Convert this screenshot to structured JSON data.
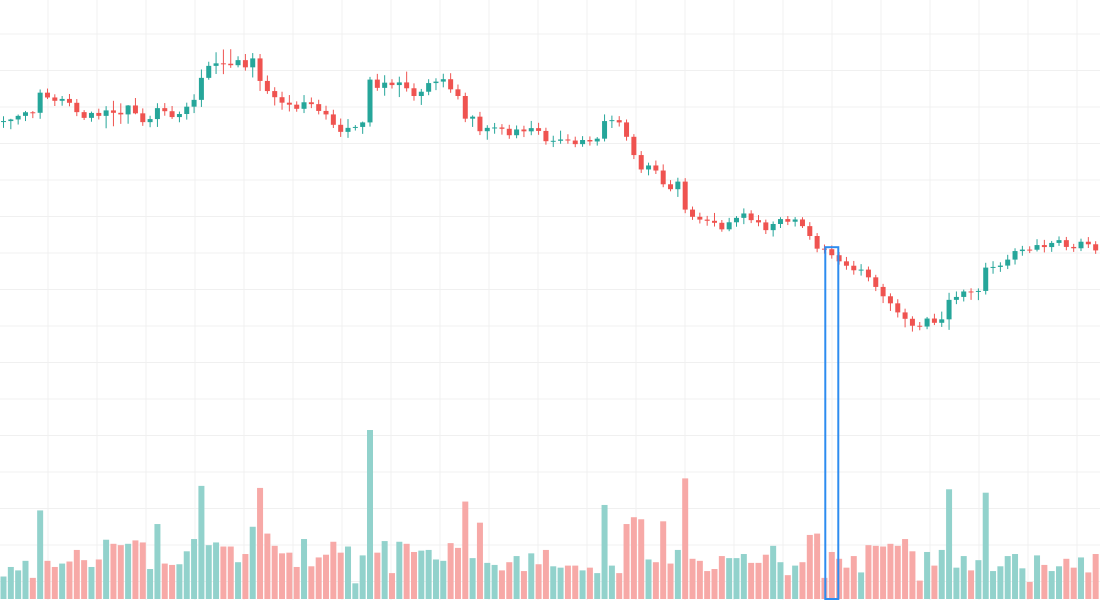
{
  "colors": {
    "background": "#ffffff",
    "grid": "#f0f0f0",
    "up": "#26a69a",
    "down": "#ef5350",
    "up_volume": "#92d2cc",
    "down_volume": "#f7a9a7",
    "highlight": "#2d8cf0"
  },
  "chart_data": {
    "type": "candlestick",
    "grid": true,
    "highlight_candle_index": 113,
    "series": [
      {
        "name": "price",
        "ohlc": [
          [
            109.17,
            109.53,
            108.66,
            109.17
          ],
          [
            109.17,
            109.34,
            108.56,
            109.29
          ],
          [
            109.29,
            109.66,
            108.91,
            109.56
          ],
          [
            109.56,
            109.93,
            109.17,
            109.83
          ],
          [
            109.83,
            109.92,
            109.39,
            109.79
          ],
          [
            109.79,
            111.54,
            109.34,
            111.3
          ],
          [
            111.3,
            111.61,
            110.82,
            110.94
          ],
          [
            110.94,
            111.18,
            110.3,
            110.69
          ],
          [
            110.69,
            111.05,
            110.32,
            110.83
          ],
          [
            110.83,
            111.2,
            110.28,
            110.54
          ],
          [
            110.54,
            110.82,
            109.54,
            109.84
          ],
          [
            109.84,
            109.99,
            109.25,
            109.41
          ],
          [
            109.41,
            109.88,
            109.12,
            109.78
          ],
          [
            109.78,
            110.1,
            109.29,
            109.56
          ],
          [
            109.56,
            110.29,
            108.63,
            109.97
          ],
          [
            109.97,
            110.69,
            108.78,
            109.79
          ],
          [
            109.79,
            110.5,
            108.96,
            109.67
          ],
          [
            109.67,
            110.37,
            108.97,
            110.34
          ],
          [
            110.34,
            110.9,
            109.68,
            109.75
          ],
          [
            109.75,
            110.12,
            108.81,
            109.09
          ],
          [
            109.09,
            109.57,
            108.71,
            109.32
          ],
          [
            109.32,
            110.51,
            108.73,
            110.14
          ],
          [
            110.14,
            110.52,
            109.57,
            109.91
          ],
          [
            109.91,
            110.3,
            109.33,
            109.47
          ],
          [
            109.47,
            109.88,
            109.08,
            109.7
          ],
          [
            109.7,
            110.55,
            109.28,
            110.25
          ],
          [
            110.25,
            111.18,
            109.77,
            110.76
          ],
          [
            110.76,
            113.04,
            110.23,
            112.41
          ],
          [
            112.41,
            113.62,
            112.27,
            113.31
          ],
          [
            113.31,
            114.33,
            112.7,
            113.5
          ],
          [
            113.5,
            114.54,
            112.69,
            113.47
          ],
          [
            113.47,
            114.56,
            113.16,
            113.36
          ],
          [
            113.36,
            114.03,
            113.2,
            113.74
          ],
          [
            113.74,
            114.2,
            112.95,
            113.2
          ],
          [
            113.2,
            114.27,
            112.44,
            113.87
          ],
          [
            113.87,
            114.2,
            111.43,
            112.18
          ],
          [
            112.18,
            112.59,
            111.21,
            111.42
          ],
          [
            111.42,
            111.71,
            110.34,
            110.96
          ],
          [
            110.96,
            111.37,
            110.02,
            110.55
          ],
          [
            110.55,
            111.12,
            109.89,
            110.4
          ],
          [
            110.4,
            110.65,
            109.87,
            110.09
          ],
          [
            110.09,
            111.12,
            109.77,
            110.58
          ],
          [
            110.58,
            110.94,
            110.14,
            110.44
          ],
          [
            110.44,
            110.77,
            109.67,
            109.93
          ],
          [
            109.93,
            110.32,
            109.28,
            109.67
          ],
          [
            109.67,
            110.02,
            108.65,
            108.89
          ],
          [
            108.89,
            109.36,
            107.98,
            108.36
          ],
          [
            108.36,
            109.32,
            107.91,
            108.66
          ],
          [
            108.66,
            108.87,
            108.46,
            108.73
          ],
          [
            108.73,
            109.13,
            108.21,
            109.07
          ],
          [
            109.07,
            112.48,
            108.75,
            112.28
          ],
          [
            112.28,
            112.71,
            111.44,
            111.66
          ],
          [
            111.66,
            112.61,
            111.07,
            112.05
          ],
          [
            112.05,
            112.31,
            111.61,
            111.87
          ],
          [
            111.87,
            112.5,
            110.97,
            112.07
          ],
          [
            112.07,
            112.88,
            111.38,
            111.63
          ],
          [
            111.63,
            112.0,
            110.7,
            111.05
          ],
          [
            111.05,
            111.58,
            110.38,
            111.37
          ],
          [
            111.37,
            112.31,
            111.11,
            112.02
          ],
          [
            112.02,
            112.38,
            111.49,
            112.13
          ],
          [
            112.13,
            112.72,
            111.7,
            112.31
          ],
          [
            112.31,
            112.76,
            111.29,
            111.55
          ],
          [
            111.55,
            111.91,
            110.79,
            111.05
          ],
          [
            111.05,
            111.3,
            109.09,
            109.35
          ],
          [
            109.35,
            109.6,
            108.73,
            109.5
          ],
          [
            109.5,
            109.86,
            108.12,
            108.41
          ],
          [
            108.41,
            108.86,
            107.77,
            108.66
          ],
          [
            108.66,
            109.03,
            108.22,
            108.69
          ],
          [
            108.69,
            108.94,
            108.15,
            108.59
          ],
          [
            108.59,
            108.89,
            107.84,
            108.11
          ],
          [
            108.11,
            108.84,
            107.88,
            108.54
          ],
          [
            108.54,
            108.82,
            107.97,
            108.4
          ],
          [
            108.4,
            109.18,
            108.11,
            108.64
          ],
          [
            108.64,
            109.04,
            108.14,
            108.43
          ],
          [
            108.43,
            108.67,
            107.4,
            107.66
          ],
          [
            107.66,
            108.07,
            107.22,
            107.69
          ],
          [
            107.69,
            108.45,
            107.47,
            107.79
          ],
          [
            107.79,
            108.18,
            107.47,
            107.71
          ],
          [
            107.71,
            108.0,
            107.21,
            107.44
          ],
          [
            107.44,
            108.04,
            107.24,
            107.75
          ],
          [
            107.75,
            108.02,
            107.33,
            107.64
          ],
          [
            107.64,
            107.97,
            107.33,
            107.85
          ],
          [
            107.85,
            109.67,
            107.64,
            109.17
          ],
          [
            109.17,
            109.58,
            108.65,
            109.24
          ],
          [
            109.24,
            109.54,
            108.76,
            109.07
          ],
          [
            109.07,
            109.29,
            107.7,
            107.99
          ],
          [
            107.99,
            108.19,
            106.32,
            106.62
          ],
          [
            106.62,
            106.92,
            105.28,
            105.54
          ],
          [
            105.54,
            106.05,
            105.1,
            105.84
          ],
          [
            105.84,
            106.21,
            105.2,
            105.46
          ],
          [
            105.46,
            105.92,
            104.21,
            104.43
          ],
          [
            104.43,
            104.74,
            103.9,
            104.06
          ],
          [
            104.06,
            104.92,
            103.48,
            104.63
          ],
          [
            104.63,
            104.89,
            102.26,
            102.53
          ],
          [
            102.53,
            102.76,
            101.76,
            101.99
          ],
          [
            101.99,
            102.3,
            101.49,
            101.78
          ],
          [
            101.78,
            102.06,
            101.32,
            101.69
          ],
          [
            101.69,
            102.28,
            101.26,
            101.54
          ],
          [
            101.54,
            101.75,
            100.87,
            101.05
          ],
          [
            101.05,
            101.91,
            100.91,
            101.58
          ],
          [
            101.58,
            102.04,
            101.24,
            101.91
          ],
          [
            101.91,
            102.62,
            101.44,
            102.24
          ],
          [
            102.24,
            102.48,
            101.52,
            101.74
          ],
          [
            101.74,
            102.12,
            101.28,
            101.57
          ],
          [
            101.57,
            101.78,
            100.7,
            100.99
          ],
          [
            100.99,
            101.64,
            100.51,
            101.45
          ],
          [
            101.45,
            101.96,
            101.15,
            101.82
          ],
          [
            101.82,
            102.05,
            101.37,
            101.62
          ],
          [
            101.62,
            101.97,
            101.26,
            101.79
          ],
          [
            101.79,
            101.96,
            101.15,
            101.29
          ],
          [
            101.29,
            101.59,
            100.27,
            100.55
          ],
          [
            100.55,
            100.77,
            99.33,
            99.6
          ],
          [
            99.6,
            99.91,
            99.23,
            99.56
          ],
          [
            99.56,
            99.84,
            98.85,
            99.11
          ],
          [
            99.11,
            99.35,
            98.4,
            98.65
          ],
          [
            98.65,
            98.98,
            98.02,
            98.32
          ],
          [
            98.32,
            98.68,
            97.65,
            97.98
          ],
          [
            97.98,
            98.44,
            97.58,
            98.03
          ],
          [
            98.03,
            98.26,
            97.15,
            97.45
          ],
          [
            97.45,
            97.64,
            96.42,
            96.73
          ],
          [
            96.73,
            96.96,
            95.52,
            96.03
          ],
          [
            96.03,
            96.25,
            94.93,
            95.5
          ],
          [
            95.5,
            95.81,
            94.44,
            94.82
          ],
          [
            94.82,
            95.1,
            93.7,
            94.34
          ],
          [
            94.34,
            94.53,
            93.38,
            93.82
          ],
          [
            93.82,
            94.1,
            93.48,
            93.76
          ],
          [
            93.76,
            94.48,
            93.56,
            94.36
          ],
          [
            94.36,
            94.72,
            93.87,
            94.04
          ],
          [
            94.04,
            94.88,
            93.73,
            94.3
          ],
          [
            94.3,
            96.29,
            93.51,
            95.76
          ],
          [
            95.76,
            96.39,
            95.44,
            95.98
          ],
          [
            95.98,
            96.53,
            95.64,
            96.39
          ],
          [
            96.39,
            96.63,
            95.76,
            96.37
          ],
          [
            96.37,
            96.62,
            95.74,
            96.43
          ],
          [
            96.43,
            98.54,
            96.16,
            98.18
          ],
          [
            98.18,
            98.66,
            97.72,
            98.23
          ],
          [
            98.23,
            98.58,
            97.86,
            98.33
          ],
          [
            98.33,
            99.14,
            98.07,
            98.78
          ],
          [
            98.78,
            99.63,
            98.41,
            99.42
          ],
          [
            99.42,
            99.81,
            99.07,
            99.53
          ],
          [
            99.53,
            99.78,
            99.27,
            99.52
          ],
          [
            99.52,
            100.31,
            99.39,
            99.87
          ],
          [
            99.87,
            100.26,
            99.32,
            99.72
          ],
          [
            99.72,
            100.18,
            99.36,
            100.03
          ],
          [
            100.03,
            100.52,
            99.81,
            100.24
          ],
          [
            100.24,
            100.48,
            99.48,
            99.73
          ],
          [
            99.73,
            99.96,
            99.36,
            99.63
          ],
          [
            99.63,
            100.35,
            99.42,
            100.12
          ],
          [
            100.12,
            100.47,
            99.65,
            99.93
          ],
          [
            99.93,
            100.16,
            99.21,
            99.47
          ],
          [
            99.47,
            99.69,
            98.93,
            99.21
          ],
          [
            99.21,
            99.58,
            98.72,
            99.06
          ],
          [
            99.06,
            99.45,
            98.77,
            99.21
          ],
          [
            99.21,
            99.46,
            98.64,
            99.02
          ],
          [
            99.02,
            99.41,
            98.67,
            99.28
          ],
          [
            99.28,
            99.63,
            98.91,
            99.49
          ],
          [
            99.49,
            99.86,
            99.1,
            99.64
          ],
          [
            99.64,
            100.08,
            99.28,
            99.9
          ],
          [
            99.9,
            100.38,
            99.62,
            100.21
          ],
          [
            100.21,
            100.54,
            99.88,
            100.31
          ],
          [
            100.31,
            100.72,
            99.95,
            100.48
          ],
          [
            100.48,
            100.71,
            100.09,
            100.62
          ]
        ],
        "volume": []
      }
    ]
  }
}
